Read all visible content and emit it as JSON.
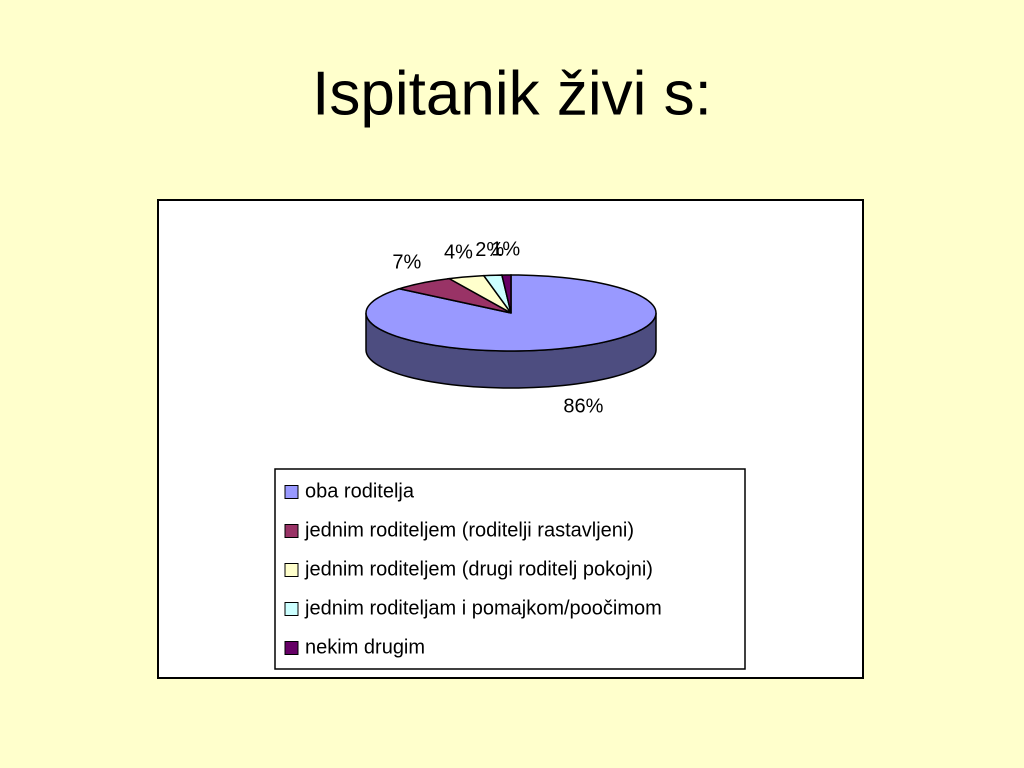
{
  "chart_data": {
    "type": "pie",
    "title": "Ispitanik živi s:",
    "categories": [
      "oba roditelja",
      "jednim roditeljem (roditelji rastavljeni)",
      "jednim roditeljem (drugi roditelj pokojni)",
      "jednim roditeljam i pomajkom/poočimom",
      "nekim drugim"
    ],
    "values": [
      86,
      7,
      4,
      2,
      1
    ],
    "value_labels": [
      "86%",
      "7%",
      "4%",
      "2%",
      "1%"
    ],
    "colors": [
      "#9999ff",
      "#993366",
      "#ffffcc",
      "#ccffff",
      "#660066"
    ],
    "legend": "bottom"
  }
}
